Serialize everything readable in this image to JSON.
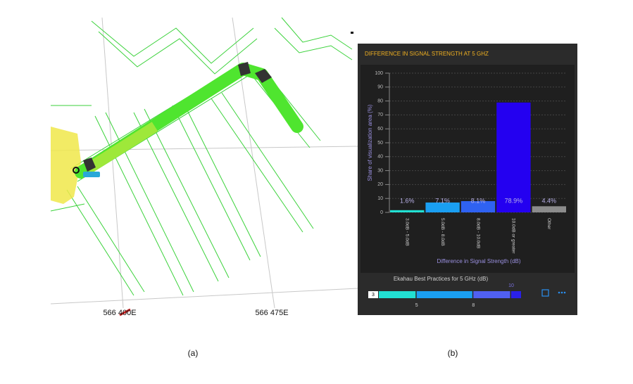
{
  "chart_data": {
    "type": "bar",
    "title": "DIFFERENCE IN SIGNAL STRENGTH AT 5 GHZ",
    "y_label": "Share of visualization area (%)",
    "x_label": "Difference in Signal Strength (dB)",
    "categories": [
      "3.0dB - 5.0dB",
      "5.0dB - 8.0dB",
      "8.0dB - 10.0dB",
      "10.0dB or greater",
      "Other"
    ],
    "values": [
      1.6,
      7.1,
      8.1,
      78.9,
      4.4
    ],
    "value_labels": [
      "1.6%",
      "7.1%",
      "8.1%",
      "78.9%",
      "4.4%"
    ],
    "colors": [
      "#22e0d2",
      "#1a9ff2",
      "#2f62f2",
      "#2400f0",
      "#8c8c8c"
    ],
    "ylim": [
      0,
      100
    ],
    "yticks": [
      0,
      10,
      20,
      30,
      40,
      50,
      60,
      70,
      80,
      90,
      100
    ],
    "grid": true
  },
  "best_practices": {
    "title": "Ekahau Best Practices for 5 GHz (dB)",
    "scale": [
      3,
      5,
      8,
      10
    ],
    "colors": [
      "#22e0d2",
      "#1a9ff2",
      "#5060f2",
      "#2a20e8"
    ]
  },
  "map": {
    "easting_labels": [
      "566 400E",
      "566 475E"
    ]
  },
  "captions": [
    "(a)",
    "(b)"
  ]
}
